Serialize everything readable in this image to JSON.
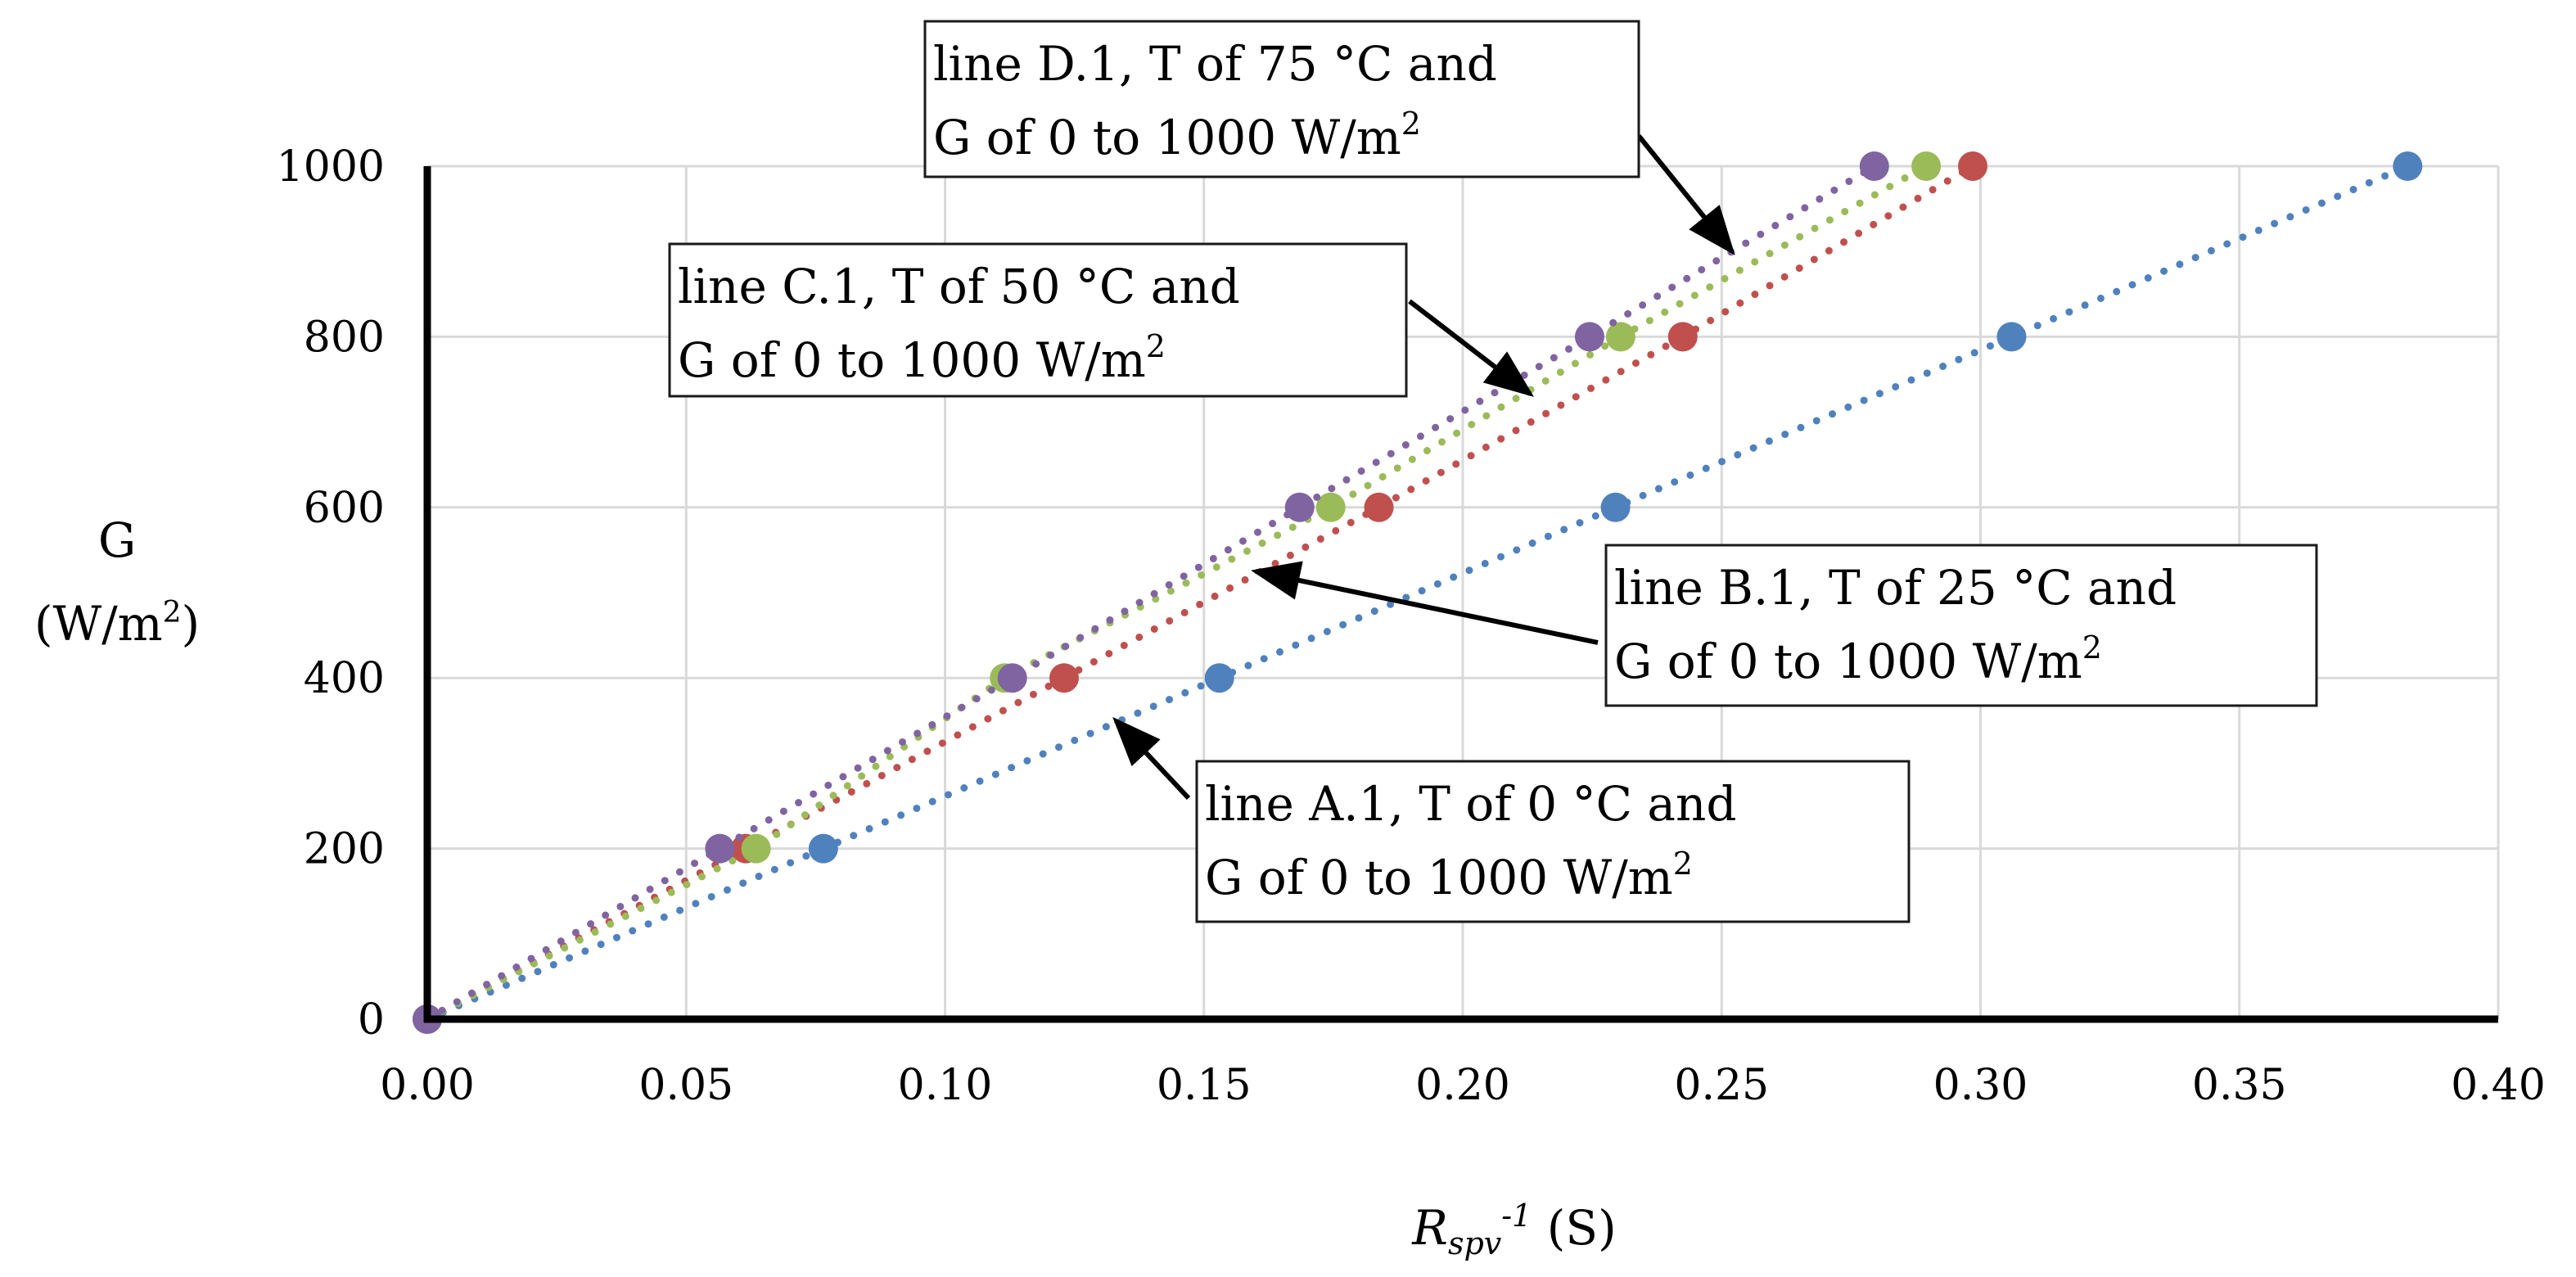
{
  "chart_data": {
    "type": "scatter",
    "title": "",
    "xlabel": {
      "main": "R",
      "sub": "spv",
      "sup": "-1",
      "unit": " (S)"
    },
    "ylabel": {
      "line1": "G",
      "line2_prefix": "(W/m",
      "line2_sup": "2",
      "line2_suffix": ")"
    },
    "xlim": [
      0,
      0.4
    ],
    "ylim": [
      0,
      1000
    ],
    "x_ticks": [
      0,
      0.05,
      0.1,
      0.15,
      0.2,
      0.25,
      0.3,
      0.35,
      0.4
    ],
    "x_tick_labels": [
      "0.00",
      "0.05",
      "0.10",
      "0.15",
      "0.20",
      "0.25",
      "0.30",
      "0.35",
      "0.40"
    ],
    "y_ticks": [
      0,
      200,
      400,
      600,
      800,
      1000
    ],
    "y_tick_labels": [
      "0",
      "200",
      "400",
      "600",
      "800",
      "1000"
    ],
    "grid": true,
    "trendline": "linear, dotted",
    "series": [
      {
        "name": "line A.1",
        "color": "#4f81bd",
        "x": [
          0,
          0.0765,
          0.153,
          0.2295,
          0.306,
          0.3825
        ],
        "y": [
          0,
          200,
          400,
          600,
          800,
          1000
        ]
      },
      {
        "name": "line B.1",
        "color": "#c0504d",
        "x": [
          0,
          0.0615,
          0.123,
          0.1838,
          0.2425,
          0.2985
        ],
        "y": [
          0,
          200,
          400,
          600,
          800,
          1000
        ]
      },
      {
        "name": "line C.1",
        "color": "#9bbb59",
        "x": [
          0,
          0.0635,
          0.1115,
          0.1745,
          0.2305,
          0.2895
        ],
        "y": [
          0,
          200,
          400,
          600,
          800,
          1000
        ]
      },
      {
        "name": "line D.1",
        "color": "#8064a2",
        "x": [
          0,
          0.0565,
          0.113,
          0.1685,
          0.2245,
          0.2795
        ],
        "y": [
          0,
          200,
          400,
          600,
          800,
          1000
        ]
      }
    ],
    "annotations": [
      {
        "id": "A",
        "line1": "line A.1, T of 0 °C and",
        "line2_prefix": "G of 0 to 1000 W/m",
        "line2_sup": "2",
        "arrow_to": [
          0.133,
          350
        ]
      },
      {
        "id": "B",
        "line1": "line B.1, T of 25 °C and",
        "line2_prefix": "G of 0 to 1000 W/m",
        "line2_sup": "2",
        "arrow_to": [
          0.16,
          525
        ]
      },
      {
        "id": "C",
        "line1": "line C.1, T of 50 °C and",
        "line2_prefix": "G of 0 to 1000 W/m",
        "line2_sup": "2",
        "arrow_to": [
          0.213,
          733
        ]
      },
      {
        "id": "D",
        "line1": "line D.1, T of 75 °C and",
        "line2_prefix": "G of 0 to 1000 W/m",
        "line2_sup": "2",
        "arrow_to": [
          0.252,
          900
        ]
      }
    ]
  }
}
